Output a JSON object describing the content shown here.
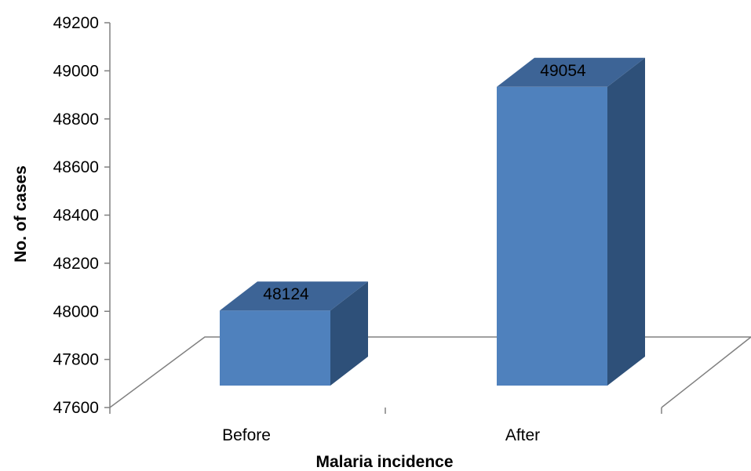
{
  "chart_data": {
    "type": "bar",
    "categories": [
      "Before",
      "After"
    ],
    "values": [
      48124,
      49054
    ],
    "xlabel": "Malaria incidence",
    "ylabel": "No. of cases",
    "ylim": [
      47600,
      49200
    ],
    "yticks": [
      47600,
      47800,
      48000,
      48200,
      48400,
      48600,
      48800,
      49000,
      49200
    ],
    "grid": false,
    "bar_colors": {
      "front": "#4F81BD",
      "side": "#2E5079",
      "top": "#3D6496"
    }
  }
}
